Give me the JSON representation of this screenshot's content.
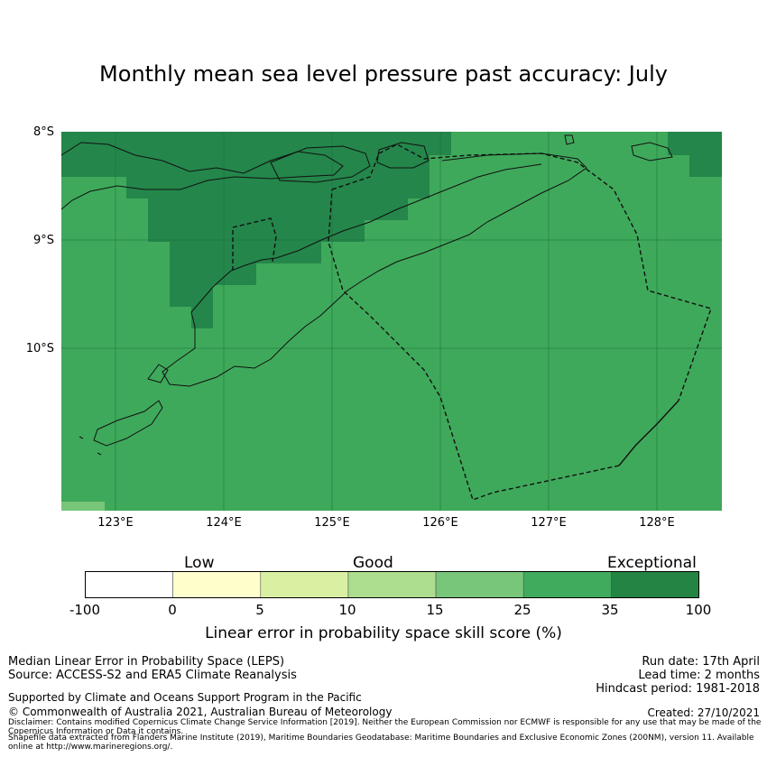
{
  "title": "Monthly mean sea level pressure past accuracy: July",
  "map": {
    "lat_labels": [
      "8°S",
      "9°S",
      "10°S"
    ],
    "lon_labels": [
      "123°E",
      "124°E",
      "125°E",
      "126°E",
      "127°E",
      "128°E"
    ],
    "colors": {
      "c35_100": "#24864a",
      "c25_35": "#3fa95b",
      "c15_25": "#77c679"
    }
  },
  "colorbar": {
    "quality_labels": [
      "Low",
      "Good",
      "Exceptional"
    ],
    "ticks": [
      "-100",
      "0",
      "5",
      "10",
      "15",
      "25",
      "35",
      "100"
    ],
    "colors": [
      "#ffffff",
      "#ffffcc",
      "#d9f0a3",
      "#addd8e",
      "#78c679",
      "#41ab5d",
      "#238443"
    ],
    "label": "Linear error in probability space skill score (%)"
  },
  "info": {
    "method": "Median Linear Error in Probability Space (LEPS)",
    "source": "Source: ACCESS-S2 and ERA5 Climate Reanalysis",
    "run_date": "Run date: 17th April",
    "lead_time": "Lead time: 2 months",
    "hindcast": "Hindcast period: 1981-2018",
    "support": "Supported by Climate and Oceans Support Program in the Pacific",
    "copyright": "© Commonwealth of Australia 2021, Australian Bureau of Meteorology",
    "created": "Created: 27/10/2021",
    "disclaimer": "Disclaimer: Contains modified Copernicus Climate Change Service Information [2019]. Neither the European Commission nor ECMWF is responsible for any use that may be made of the Copernicus Information or Data it contains.",
    "shapefile": "Shapefile data extracted from Flanders Marine Institute (2019), Maritime Boundaries Geodatabase: Maritime Boundaries and Exclusive Economic Zones (200NM), version 11. Available online at http://www.marineregions.org/."
  }
}
